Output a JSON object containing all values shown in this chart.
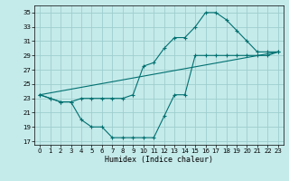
{
  "xlabel": "Humidex (Indice chaleur)",
  "ylabel": "",
  "bg_color": "#c5eaea",
  "grid_color": "#9ecece",
  "line_color": "#007070",
  "xlim": [
    -0.5,
    23.5
  ],
  "ylim": [
    16.5,
    36
  ],
  "yticks": [
    17,
    19,
    21,
    23,
    25,
    27,
    29,
    31,
    33,
    35
  ],
  "xticks": [
    0,
    1,
    2,
    3,
    4,
    5,
    6,
    7,
    8,
    9,
    10,
    11,
    12,
    13,
    14,
    15,
    16,
    17,
    18,
    19,
    20,
    21,
    22,
    23
  ],
  "line1_x": [
    0,
    1,
    2,
    3,
    4,
    5,
    6,
    7,
    8,
    9,
    10,
    11,
    12,
    13,
    14,
    15,
    16,
    17,
    18,
    19,
    20,
    21,
    22,
    23
  ],
  "line1_y": [
    23.5,
    23.0,
    22.5,
    22.5,
    23.0,
    23.0,
    23.0,
    23.0,
    23.0,
    23.5,
    27.5,
    28.0,
    30.0,
    31.5,
    31.5,
    33.0,
    35.0,
    35.0,
    34.0,
    32.5,
    31.0,
    29.5,
    29.5,
    29.5
  ],
  "line2_x": [
    0,
    1,
    2,
    3,
    4,
    5,
    6,
    7,
    8,
    9,
    10,
    11,
    12,
    13,
    14,
    15,
    16,
    17,
    18,
    19,
    20,
    21,
    22,
    23
  ],
  "line2_y": [
    23.5,
    23.0,
    22.5,
    22.5,
    20.0,
    19.0,
    19.0,
    17.5,
    17.5,
    17.5,
    17.5,
    17.5,
    20.5,
    23.5,
    23.5,
    29.0,
    29.0,
    29.0,
    29.0,
    29.0,
    29.0,
    29.0,
    29.0,
    29.5
  ],
  "line3_x": [
    0,
    23
  ],
  "line3_y": [
    23.5,
    29.5
  ]
}
